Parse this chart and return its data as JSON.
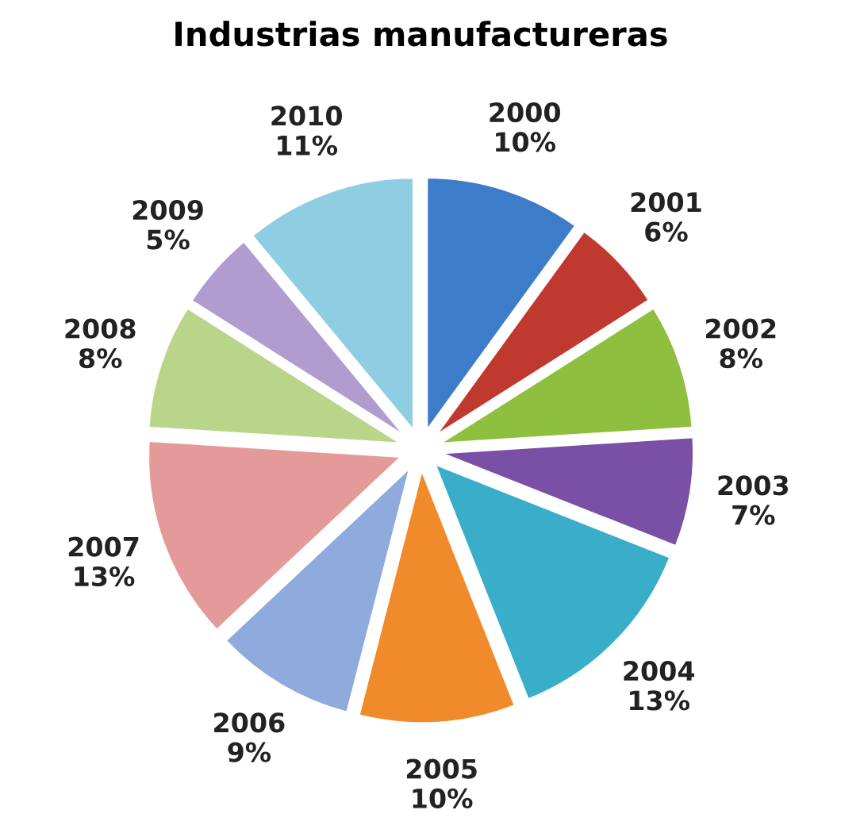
{
  "chart_data": {
    "type": "pie",
    "title": "Industrias manufactureras",
    "categories": [
      "2000",
      "2001",
      "2002",
      "2003",
      "2004",
      "2005",
      "2006",
      "2007",
      "2008",
      "2009",
      "2010"
    ],
    "values": [
      10,
      6,
      8,
      7,
      13,
      10,
      9,
      13,
      8,
      5,
      11
    ],
    "value_labels": [
      "10%",
      "6%",
      "8%",
      "7%",
      "13%",
      "10%",
      "9%",
      "13%",
      "8%",
      "5%",
      "11%"
    ],
    "colors": [
      "#3d7cc9",
      "#c0392f",
      "#8fbf3f",
      "#7a4fa6",
      "#3aaec9",
      "#f08a2a",
      "#8faadc",
      "#e49a98",
      "#b9d589",
      "#b19ccf",
      "#8fcde3"
    ],
    "legend": false
  }
}
